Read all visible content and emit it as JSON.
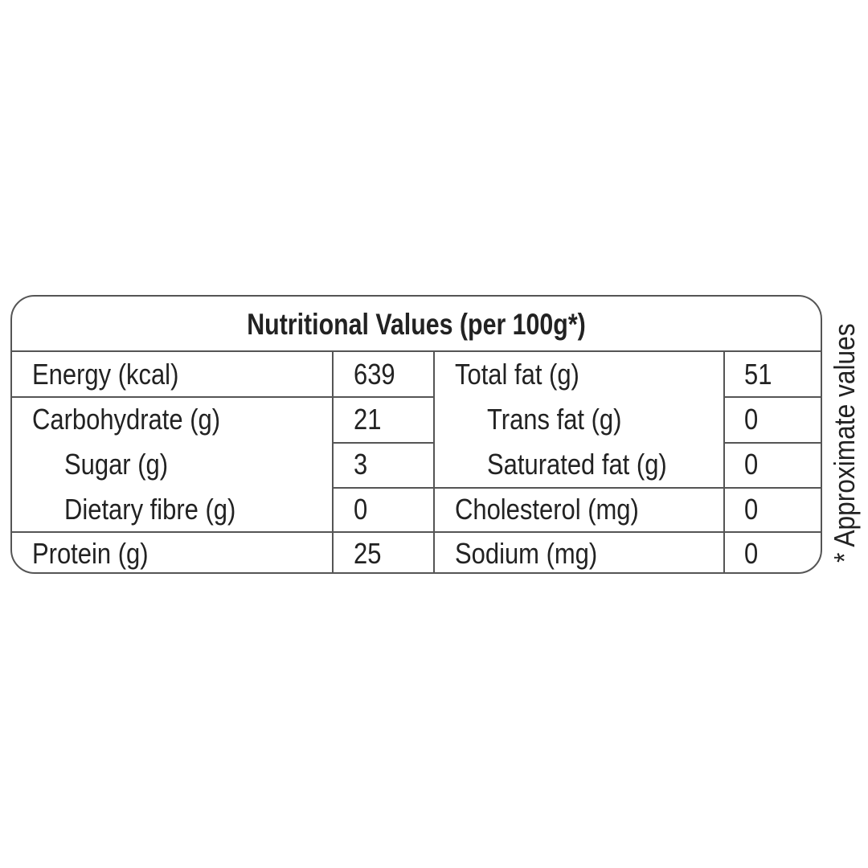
{
  "title": "Nutritional Values (per 100g*)",
  "note": "* Approximate values",
  "left": [
    {
      "label": "Energy (kcal)",
      "value": "639"
    },
    {
      "label": "Carbohydrate (g)",
      "value": "21"
    },
    {
      "label": "Sugar (g)",
      "value": "3"
    },
    {
      "label": "Dietary fibre (g)",
      "value": "0"
    },
    {
      "label": "Protein (g)",
      "value": "25"
    }
  ],
  "right": [
    {
      "label": "Total fat (g)",
      "value": "51"
    },
    {
      "label": "Trans fat (g)",
      "value": "0"
    },
    {
      "label": "Saturated fat (g)",
      "value": "0"
    },
    {
      "label": "Cholesterol (mg)",
      "value": "0"
    },
    {
      "label": "Sodium (mg)",
      "value": "0"
    }
  ]
}
